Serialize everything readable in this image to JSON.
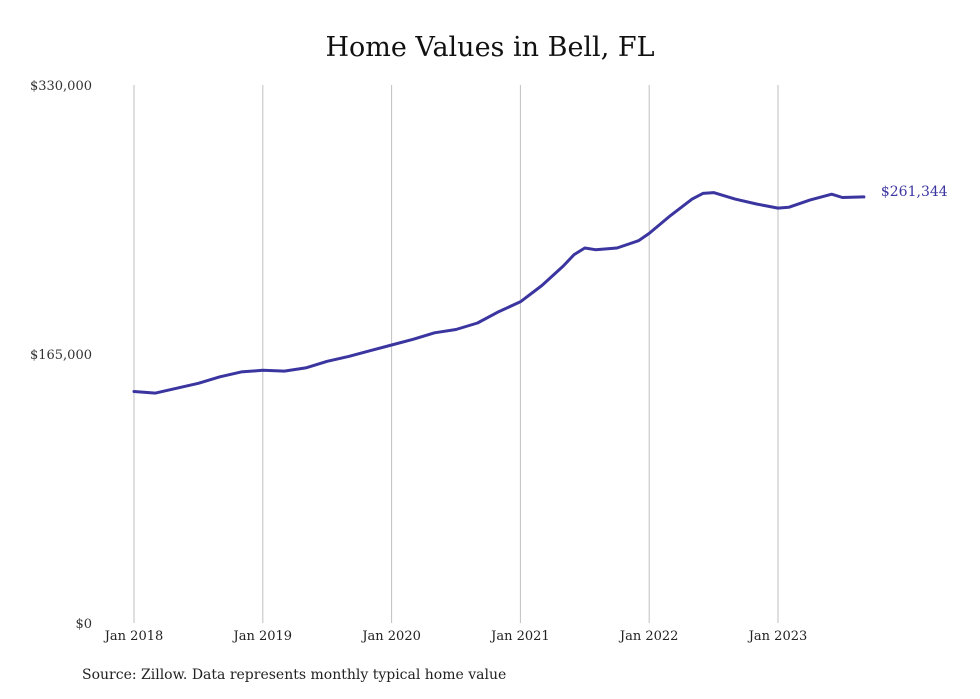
{
  "title": "Home Values in Bell, FL",
  "source": "Source: Zillow. Data represents monthly typical home value",
  "line_color": "#3b35a0",
  "grid_color": "#bfbfbf",
  "chart_data": {
    "type": "line",
    "title": "Home Values in Bell, FL",
    "xlabel": "",
    "ylabel": "",
    "ylim": [
      0,
      330000
    ],
    "ytick_labels": [
      "$0",
      "$165,000",
      "$330,000"
    ],
    "ytick_values": [
      0,
      165000,
      330000
    ],
    "xtick_labels": [
      "Jan 2018",
      "Jan 2019",
      "Jan 2020",
      "Jan 2021",
      "Jan 2022",
      "Jan 2023"
    ],
    "xtick_dates": [
      "2018-01",
      "2019-01",
      "2020-01",
      "2021-01",
      "2022-01",
      "2023-01"
    ],
    "grid": "vertical",
    "end_label": "$261,344",
    "series": [
      {
        "x": [
          "2018-01",
          "2018-03",
          "2018-05",
          "2018-07",
          "2018-09",
          "2018-11",
          "2019-01",
          "2019-03",
          "2019-05",
          "2019-07",
          "2019-09",
          "2019-11",
          "2020-01",
          "2020-03",
          "2020-05",
          "2020-07",
          "2020-09",
          "2020-11",
          "2021-01",
          "2021-03",
          "2021-05",
          "2021-06",
          "2021-07",
          "2021-08",
          "2021-10",
          "2021-12",
          "2022-01",
          "2022-03",
          "2022-05",
          "2022-06",
          "2022-07",
          "2022-09",
          "2022-11",
          "2023-01",
          "2023-02",
          "2023-04",
          "2023-06",
          "2023-07",
          "2023-09"
        ],
        "values": [
          142000,
          141000,
          144000,
          147000,
          151000,
          154000,
          155000,
          154500,
          156500,
          160500,
          163500,
          167000,
          170500,
          174000,
          178000,
          180000,
          184000,
          191000,
          197000,
          207000,
          219000,
          226000,
          230000,
          229000,
          230000,
          234500,
          239000,
          250000,
          260000,
          263500,
          264000,
          260000,
          257000,
          254500,
          255000,
          259500,
          263000,
          261000,
          261344
        ]
      }
    ]
  }
}
